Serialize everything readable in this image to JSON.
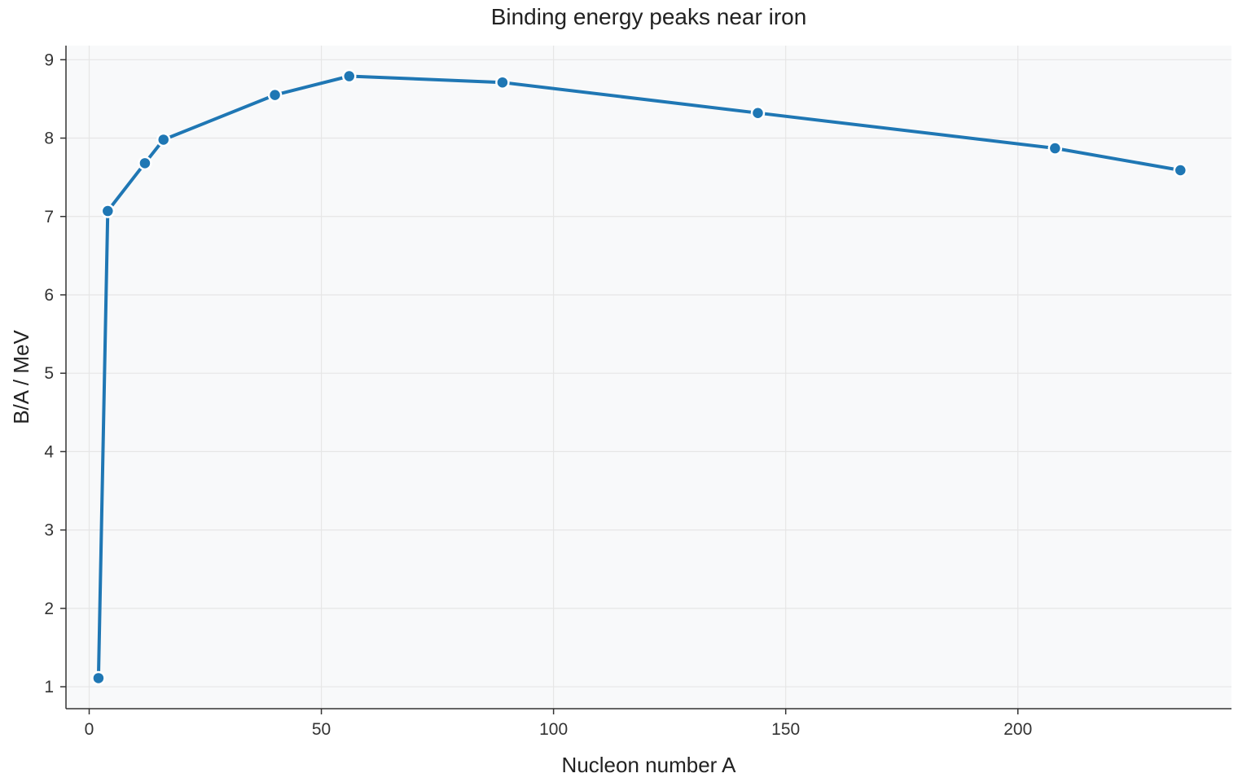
{
  "chart_data": {
    "type": "line",
    "title": "Binding energy peaks near iron",
    "xlabel": "Nucleon number A",
    "ylabel": "B/A / MeV",
    "xlim": [
      -5,
      246
    ],
    "ylim": [
      0.72,
      9.18
    ],
    "xticks": [
      0,
      50,
      100,
      150,
      200
    ],
    "yticks": [
      1,
      2,
      3,
      4,
      5,
      6,
      7,
      8,
      9
    ],
    "grid": true,
    "series": [
      {
        "x": [
          2,
          4,
          12,
          16,
          40,
          56,
          89,
          144,
          208,
          235
        ],
        "y": [
          1.11,
          7.07,
          7.68,
          7.98,
          8.55,
          8.79,
          8.71,
          8.32,
          7.87,
          7.59
        ]
      }
    ],
    "colors": {
      "line": "#1f77b4",
      "plot_background": "#f8f9fa",
      "grid": "#e6e6e6",
      "marker_edge": "#ffffff"
    }
  }
}
